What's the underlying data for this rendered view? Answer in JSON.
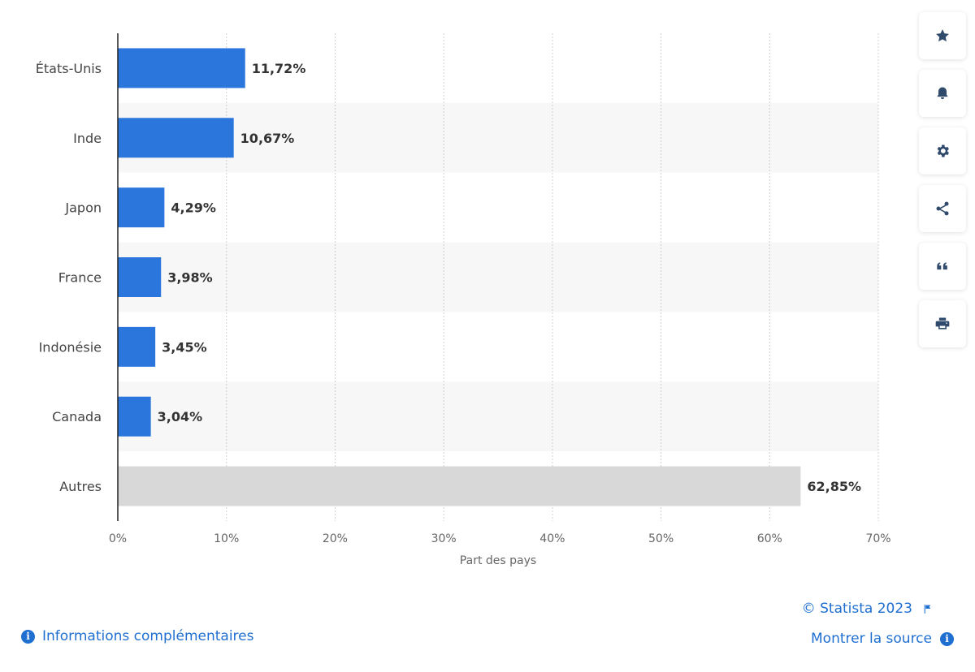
{
  "chart_data": {
    "type": "bar",
    "orientation": "horizontal",
    "categories": [
      "États-Unis",
      "Inde",
      "Japon",
      "France",
      "Indonésie",
      "Canada",
      "Autres"
    ],
    "values": [
      11.72,
      10.67,
      4.29,
      3.98,
      3.45,
      3.04,
      62.85
    ],
    "value_labels": [
      "11,72%",
      "10,67%",
      "4,29%",
      "3,98%",
      "3,45%",
      "3,04%",
      "62,85%"
    ],
    "xlabel": "Part des pays",
    "xlim": [
      0,
      70
    ],
    "ticks": [
      0,
      10,
      20,
      30,
      40,
      50,
      60,
      70
    ],
    "tick_labels": [
      "0%",
      "10%",
      "20%",
      "30%",
      "40%",
      "50%",
      "60%",
      "70%"
    ],
    "grid": true,
    "colors": {
      "bar": "#2a76dd",
      "other_bar": "#d8d8d8",
      "band": "#f7f7f7",
      "grid": "#cfcfcf",
      "axis": "#222222"
    }
  },
  "sidebar": {
    "buttons": [
      "star-icon",
      "bell-icon",
      "gear-icon",
      "share-icon",
      "quote-icon",
      "print-icon"
    ]
  },
  "footer": {
    "copyright": "© Statista 2023",
    "source_link": "Montrer la source",
    "info_link": "Informations complémentaires",
    "accent_color": "#1f6fd1"
  }
}
